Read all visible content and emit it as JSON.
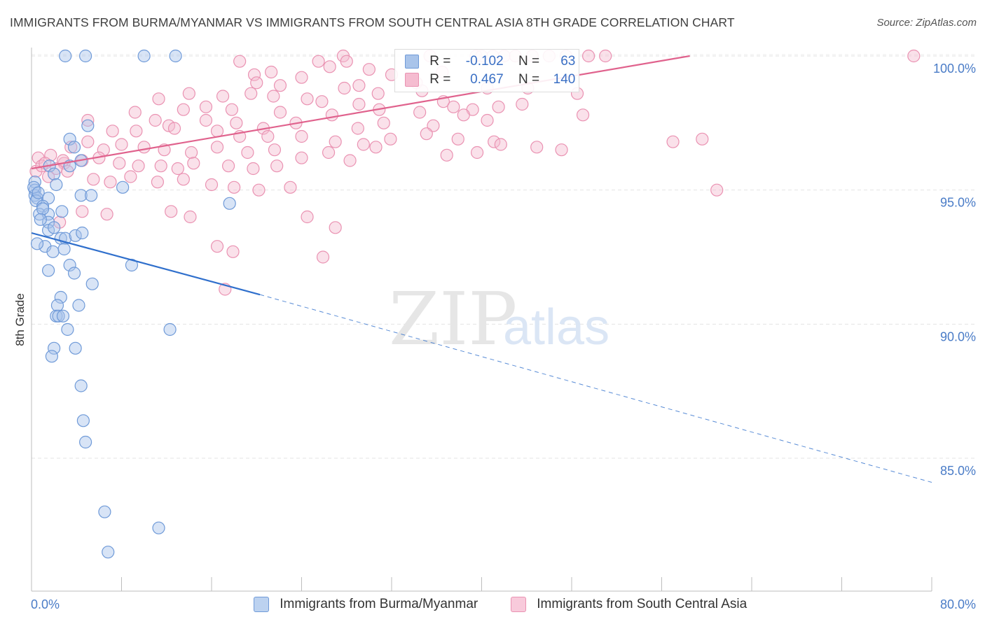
{
  "header": {
    "title": "IMMIGRANTS FROM BURMA/MYANMAR VS IMMIGRANTS FROM SOUTH CENTRAL ASIA 8TH GRADE CORRELATION CHART",
    "source": "Source: ZipAtlas.com"
  },
  "watermark": {
    "zip": "ZIP",
    "atlas": "atlas"
  },
  "legend": {
    "rows": [
      {
        "r_label": "R =",
        "r_value": "-0.102",
        "n_label": "N =",
        "n_value": "63"
      },
      {
        "r_label": "R =",
        "r_value": "0.467",
        "n_label": "N =",
        "n_value": "140"
      }
    ]
  },
  "chart_data": {
    "type": "scatter",
    "ylabel": "8th Grade",
    "xlim": [
      0,
      80
    ],
    "ylim": [
      80.5,
      101.0
    ],
    "x_tick_labels": [
      "0.0%",
      "80.0%"
    ],
    "y_ticks": [
      85.0,
      90.0,
      95.0,
      100.0
    ],
    "y_tick_labels": [
      "85.0%",
      "90.0%",
      "95.0%",
      "100.0%"
    ],
    "grid": "horizontal dashed",
    "legend_placement": "top-center",
    "colors": {
      "blue_fill": "#a9c4ea",
      "blue_stroke": "#6f9ad8",
      "blue_line": "#2f6fcc",
      "pink_fill": "#f5bcd0",
      "pink_stroke": "#ea92b2",
      "pink_line": "#e0628d"
    },
    "series": [
      {
        "name": "Immigrants from Burma/Myanmar",
        "color": "#6f9ad8",
        "trend": {
          "x0": 0,
          "y0": 93.4,
          "x1": 20.3,
          "y1": 91.1,
          "dash_to_x": 80,
          "dash_to_y": 84.1
        },
        "points": [
          [
            3.0,
            100.0
          ],
          [
            4.8,
            100.0
          ],
          [
            10.0,
            100.0
          ],
          [
            12.8,
            100.0
          ],
          [
            5.0,
            97.4
          ],
          [
            3.4,
            96.9
          ],
          [
            3.8,
            96.6
          ],
          [
            4.4,
            96.1
          ],
          [
            1.6,
            95.9
          ],
          [
            3.4,
            95.9
          ],
          [
            2.0,
            95.6
          ],
          [
            0.3,
            95.3
          ],
          [
            2.2,
            95.2
          ],
          [
            8.1,
            95.1
          ],
          [
            0.3,
            95.0
          ],
          [
            0.3,
            94.8
          ],
          [
            0.5,
            94.7
          ],
          [
            1.5,
            94.7
          ],
          [
            4.4,
            94.8
          ],
          [
            5.3,
            94.8
          ],
          [
            0.4,
            94.6
          ],
          [
            1.0,
            94.4
          ],
          [
            17.6,
            94.5
          ],
          [
            2.7,
            94.2
          ],
          [
            0.7,
            94.1
          ],
          [
            1.5,
            94.1
          ],
          [
            1.5,
            93.8
          ],
          [
            1.5,
            93.5
          ],
          [
            2.6,
            93.2
          ],
          [
            3.0,
            93.2
          ],
          [
            3.9,
            93.3
          ],
          [
            4.5,
            93.4
          ],
          [
            1.2,
            92.9
          ],
          [
            1.9,
            92.7
          ],
          [
            2.9,
            92.8
          ],
          [
            1.5,
            92.0
          ],
          [
            3.4,
            92.2
          ],
          [
            3.8,
            91.9
          ],
          [
            8.9,
            92.2
          ],
          [
            5.4,
            91.5
          ],
          [
            2.6,
            91.0
          ],
          [
            2.3,
            90.7
          ],
          [
            4.2,
            90.7
          ],
          [
            2.2,
            90.3
          ],
          [
            2.4,
            90.3
          ],
          [
            2.8,
            90.3
          ],
          [
            3.2,
            89.8
          ],
          [
            12.3,
            89.8
          ],
          [
            2.0,
            89.1
          ],
          [
            3.9,
            89.1
          ],
          [
            1.8,
            88.8
          ],
          [
            4.4,
            87.7
          ],
          [
            4.6,
            86.4
          ],
          [
            4.8,
            85.6
          ],
          [
            6.5,
            83.0
          ],
          [
            11.3,
            82.4
          ],
          [
            6.8,
            81.5
          ],
          [
            0.2,
            95.1
          ],
          [
            0.6,
            94.9
          ],
          [
            1.0,
            94.3
          ],
          [
            0.8,
            93.9
          ],
          [
            2.0,
            93.6
          ],
          [
            0.5,
            93.0
          ]
        ]
      },
      {
        "name": "Immigrants from South Central Asia",
        "color": "#ea92b2",
        "trend": {
          "x0": 0,
          "y0": 95.8,
          "x1": 58.5,
          "y1": 100.0
        },
        "points": [
          [
            27.7,
            100.0
          ],
          [
            35.4,
            100.0
          ],
          [
            39.5,
            100.0
          ],
          [
            40.0,
            100.0
          ],
          [
            41.0,
            100.0
          ],
          [
            42.0,
            100.0
          ],
          [
            43.0,
            100.0
          ],
          [
            44.5,
            100.0
          ],
          [
            46.0,
            100.0
          ],
          [
            47.5,
            100.0
          ],
          [
            49.5,
            100.0
          ],
          [
            51.0,
            100.0
          ],
          [
            78.4,
            100.0
          ],
          [
            18.5,
            99.8
          ],
          [
            25.5,
            99.8
          ],
          [
            28.0,
            99.8
          ],
          [
            26.5,
            99.6
          ],
          [
            30.0,
            99.5
          ],
          [
            36.5,
            99.4
          ],
          [
            19.8,
            99.3
          ],
          [
            21.3,
            99.4
          ],
          [
            24.0,
            99.2
          ],
          [
            32.0,
            99.3
          ],
          [
            34.2,
            99.0
          ],
          [
            20.0,
            99.0
          ],
          [
            22.1,
            98.9
          ],
          [
            27.8,
            98.8
          ],
          [
            29.1,
            98.9
          ],
          [
            30.8,
            98.6
          ],
          [
            34.7,
            98.7
          ],
          [
            40.5,
            98.8
          ],
          [
            44.1,
            98.8
          ],
          [
            48.5,
            98.6
          ],
          [
            14.0,
            98.6
          ],
          [
            17.0,
            98.5
          ],
          [
            19.5,
            98.6
          ],
          [
            21.5,
            98.5
          ],
          [
            24.5,
            98.4
          ],
          [
            25.8,
            98.3
          ],
          [
            29.1,
            98.2
          ],
          [
            36.6,
            98.3
          ],
          [
            11.3,
            98.4
          ],
          [
            13.5,
            98.0
          ],
          [
            15.5,
            98.1
          ],
          [
            17.8,
            98.0
          ],
          [
            22.1,
            97.9
          ],
          [
            26.7,
            97.8
          ],
          [
            30.9,
            98.0
          ],
          [
            34.5,
            97.9
          ],
          [
            37.5,
            98.1
          ],
          [
            39.2,
            98.0
          ],
          [
            41.5,
            98.1
          ],
          [
            43.6,
            98.2
          ],
          [
            38.4,
            97.8
          ],
          [
            9.2,
            97.9
          ],
          [
            11.0,
            97.6
          ],
          [
            12.2,
            97.4
          ],
          [
            15.5,
            97.6
          ],
          [
            18.2,
            97.5
          ],
          [
            20.6,
            97.3
          ],
          [
            23.5,
            97.5
          ],
          [
            29.0,
            97.3
          ],
          [
            31.3,
            97.5
          ],
          [
            35.7,
            97.4
          ],
          [
            40.5,
            97.6
          ],
          [
            49.0,
            97.8
          ],
          [
            5.0,
            97.6
          ],
          [
            7.2,
            97.2
          ],
          [
            9.3,
            97.2
          ],
          [
            12.7,
            97.3
          ],
          [
            16.5,
            97.2
          ],
          [
            18.5,
            97.0
          ],
          [
            21.0,
            97.0
          ],
          [
            24.0,
            97.0
          ],
          [
            27.0,
            96.8
          ],
          [
            29.5,
            96.7
          ],
          [
            31.9,
            96.9
          ],
          [
            35.1,
            97.1
          ],
          [
            37.9,
            96.9
          ],
          [
            41.1,
            96.8
          ],
          [
            44.9,
            96.6
          ],
          [
            47.1,
            96.5
          ],
          [
            3.5,
            96.6
          ],
          [
            5.0,
            96.8
          ],
          [
            6.4,
            96.5
          ],
          [
            8.0,
            96.7
          ],
          [
            10.0,
            96.6
          ],
          [
            11.8,
            96.5
          ],
          [
            14.2,
            96.4
          ],
          [
            16.5,
            96.6
          ],
          [
            19.2,
            96.4
          ],
          [
            21.6,
            96.5
          ],
          [
            24.0,
            96.2
          ],
          [
            26.4,
            96.4
          ],
          [
            28.3,
            96.1
          ],
          [
            30.6,
            96.6
          ],
          [
            36.9,
            96.3
          ],
          [
            39.6,
            96.4
          ],
          [
            41.7,
            96.7
          ],
          [
            57.0,
            96.8
          ],
          [
            59.6,
            96.9
          ],
          [
            0.6,
            96.2
          ],
          [
            1.7,
            96.3
          ],
          [
            2.9,
            96.0
          ],
          [
            4.5,
            96.1
          ],
          [
            6.0,
            96.2
          ],
          [
            7.8,
            96.0
          ],
          [
            9.5,
            95.9
          ],
          [
            11.5,
            95.9
          ],
          [
            13.0,
            95.8
          ],
          [
            14.4,
            96.0
          ],
          [
            17.5,
            95.9
          ],
          [
            19.7,
            95.8
          ],
          [
            21.8,
            95.9
          ],
          [
            0.4,
            95.7
          ],
          [
            1.5,
            95.5
          ],
          [
            3.2,
            95.7
          ],
          [
            5.5,
            95.4
          ],
          [
            7.0,
            95.3
          ],
          [
            8.8,
            95.5
          ],
          [
            11.2,
            95.3
          ],
          [
            13.5,
            95.4
          ],
          [
            16.0,
            95.2
          ],
          [
            18.0,
            95.1
          ],
          [
            20.2,
            95.0
          ],
          [
            23.0,
            95.1
          ],
          [
            0.9,
            95.9
          ],
          [
            2.2,
            95.8
          ],
          [
            1.2,
            96.0
          ],
          [
            2.8,
            96.1
          ],
          [
            60.9,
            95.0
          ],
          [
            4.5,
            94.2
          ],
          [
            2.5,
            93.8
          ],
          [
            6.7,
            94.1
          ],
          [
            12.4,
            94.2
          ],
          [
            14.1,
            94.0
          ],
          [
            24.5,
            94.0
          ],
          [
            27.0,
            93.6
          ],
          [
            16.5,
            92.9
          ],
          [
            17.9,
            92.7
          ],
          [
            25.9,
            92.5
          ],
          [
            17.2,
            91.3
          ]
        ]
      }
    ]
  },
  "bottom_legend": {
    "items": [
      "Immigrants from Burma/Myanmar",
      "Immigrants from South Central Asia"
    ]
  }
}
